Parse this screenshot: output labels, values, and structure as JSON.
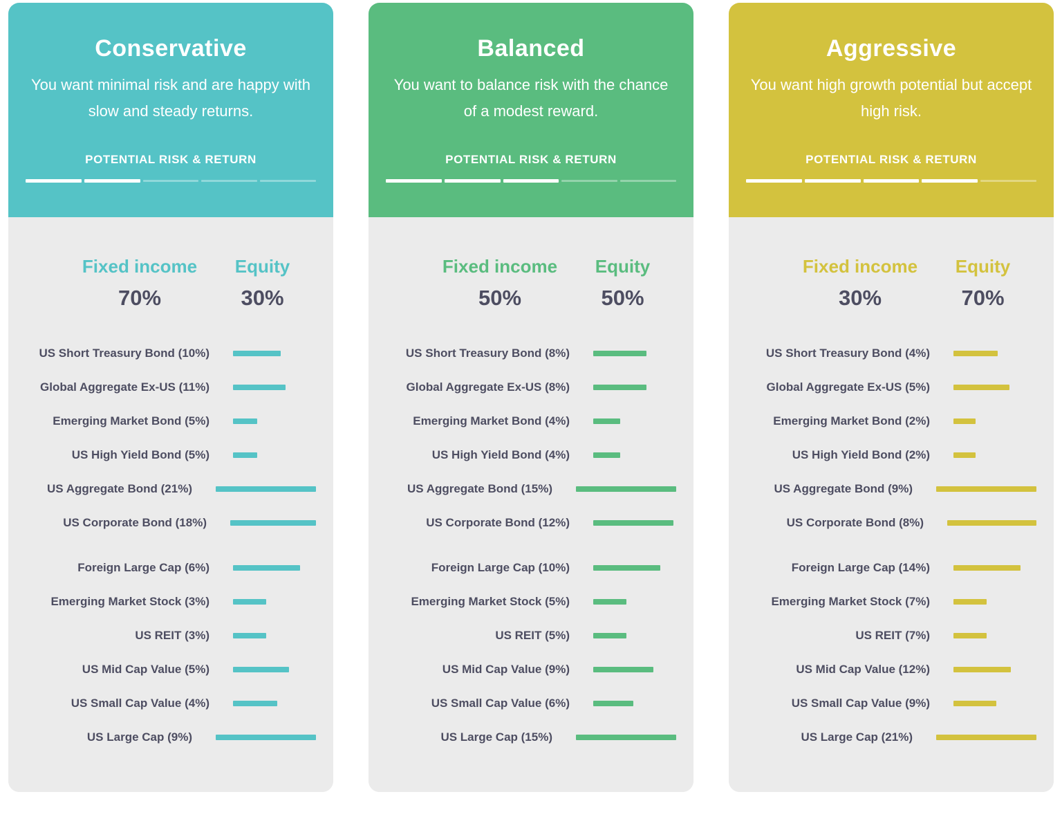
{
  "cards": [
    {
      "id": "conservative",
      "title": "Conservative",
      "description": "You want minimal risk and are happy with slow and steady returns.",
      "risk_label": "POTENTIAL RISK & RETURN",
      "risk_filled": 2,
      "risk_total": 5,
      "accent": "#55c3c6",
      "fixed_income_label": "Fixed income",
      "fixed_income_percent": "70%",
      "equity_label": "Equity",
      "equity_percent": "30%",
      "fixed_income_rows": [
        {
          "label": "US Short Treasury Bond (10%)",
          "value": 10
        },
        {
          "label": "Global Aggregate Ex-US (11%)",
          "value": 11
        },
        {
          "label": "Emerging Market Bond (5%)",
          "value": 5
        },
        {
          "label": "US High Yield Bond (5%)",
          "value": 5
        },
        {
          "label": "US Aggregate Bond (21%)",
          "value": 21
        },
        {
          "label": "US Corporate Bond (18%)",
          "value": 18
        }
      ],
      "equity_rows": [
        {
          "label": "Foreign Large Cap (6%)",
          "value": 6
        },
        {
          "label": "Emerging Market Stock (3%)",
          "value": 3
        },
        {
          "label": "US REIT (3%)",
          "value": 3
        },
        {
          "label": "US Mid Cap Value (5%)",
          "value": 5
        },
        {
          "label": "US Small Cap Value (4%)",
          "value": 4
        },
        {
          "label": "US Large Cap (9%)",
          "value": 9
        }
      ]
    },
    {
      "id": "balanced",
      "title": "Balanced",
      "description": "You want to balance risk with the chance of a modest reward.",
      "risk_label": "POTENTIAL RISK & RETURN",
      "risk_filled": 3,
      "risk_total": 5,
      "accent": "#5abc7f",
      "fixed_income_label": "Fixed income",
      "fixed_income_percent": "50%",
      "equity_label": "Equity",
      "equity_percent": "50%",
      "fixed_income_rows": [
        {
          "label": "US Short Treasury Bond (8%)",
          "value": 8
        },
        {
          "label": "Global Aggregate Ex-US (8%)",
          "value": 8
        },
        {
          "label": "Emerging Market Bond (4%)",
          "value": 4
        },
        {
          "label": "US High Yield Bond (4%)",
          "value": 4
        },
        {
          "label": "US Aggregate Bond (15%)",
          "value": 15
        },
        {
          "label": "US Corporate Bond (12%)",
          "value": 12
        }
      ],
      "equity_rows": [
        {
          "label": "Foreign Large Cap (10%)",
          "value": 10
        },
        {
          "label": "Emerging Market Stock (5%)",
          "value": 5
        },
        {
          "label": "US REIT (5%)",
          "value": 5
        },
        {
          "label": "US Mid Cap Value (9%)",
          "value": 9
        },
        {
          "label": "US Small Cap Value (6%)",
          "value": 6
        },
        {
          "label": "US Large Cap (15%)",
          "value": 15
        }
      ]
    },
    {
      "id": "aggressive",
      "title": "Aggressive",
      "description": "You want high growth potential but accept high risk.",
      "risk_label": "POTENTIAL RISK & RETURN",
      "risk_filled": 4,
      "risk_total": 5,
      "accent": "#d3c23e",
      "fixed_income_label": "Fixed income",
      "fixed_income_percent": "30%",
      "equity_label": "Equity",
      "equity_percent": "70%",
      "fixed_income_rows": [
        {
          "label": "US Short Treasury Bond (4%)",
          "value": 4
        },
        {
          "label": "Global Aggregate Ex-US (5%)",
          "value": 5
        },
        {
          "label": "Emerging Market Bond (2%)",
          "value": 2
        },
        {
          "label": "US High Yield Bond (2%)",
          "value": 2
        },
        {
          "label": "US Aggregate Bond (9%)",
          "value": 9
        },
        {
          "label": "US Corporate Bond (8%)",
          "value": 8
        }
      ],
      "equity_rows": [
        {
          "label": "Foreign Large Cap (14%)",
          "value": 14
        },
        {
          "label": "Emerging Market Stock (7%)",
          "value": 7
        },
        {
          "label": "US REIT (7%)",
          "value": 7
        },
        {
          "label": "US Mid Cap Value (12%)",
          "value": 12
        },
        {
          "label": "US Small Cap Value (9%)",
          "value": 9
        },
        {
          "label": "US Large Cap (21%)",
          "value": 21
        }
      ]
    }
  ],
  "chart_data": [
    {
      "type": "bar",
      "title": "Conservative",
      "subtitle": "You want minimal risk and are happy with slow and steady returns.",
      "orientation": "horizontal",
      "risk_meter": {
        "label": "POTENTIAL RISK & RETURN",
        "filled": 2,
        "max": 5
      },
      "series": [
        {
          "name": "Fixed income",
          "total_percent": 70,
          "categories": [
            "US Short Treasury Bond",
            "Global Aggregate Ex-US",
            "Emerging Market Bond",
            "US High Yield Bond",
            "US Aggregate Bond",
            "US Corporate Bond"
          ],
          "values": [
            10,
            11,
            5,
            5,
            21,
            18
          ]
        },
        {
          "name": "Equity",
          "total_percent": 30,
          "categories": [
            "Foreign Large Cap",
            "Emerging Market Stock",
            "US REIT",
            "US Mid Cap Value",
            "US Small Cap Value",
            "US Large Cap"
          ],
          "values": [
            6,
            3,
            3,
            5,
            4,
            9
          ]
        }
      ],
      "accent_color": "#55c3c6",
      "unit": "%",
      "grid": false,
      "legend_position": "none"
    },
    {
      "type": "bar",
      "title": "Balanced",
      "subtitle": "You want to balance risk with the chance of a modest reward.",
      "orientation": "horizontal",
      "risk_meter": {
        "label": "POTENTIAL RISK & RETURN",
        "filled": 3,
        "max": 5
      },
      "series": [
        {
          "name": "Fixed income",
          "total_percent": 50,
          "categories": [
            "US Short Treasury Bond",
            "Global Aggregate Ex-US",
            "Emerging Market Bond",
            "US High Yield Bond",
            "US Aggregate Bond",
            "US Corporate Bond"
          ],
          "values": [
            8,
            8,
            4,
            4,
            15,
            12
          ]
        },
        {
          "name": "Equity",
          "total_percent": 50,
          "categories": [
            "Foreign Large Cap",
            "Emerging Market Stock",
            "US REIT",
            "US Mid Cap Value",
            "US Small Cap Value",
            "US Large Cap"
          ],
          "values": [
            10,
            5,
            5,
            9,
            6,
            15
          ]
        }
      ],
      "accent_color": "#5abc7f",
      "unit": "%",
      "grid": false,
      "legend_position": "none"
    },
    {
      "type": "bar",
      "title": "Aggressive",
      "subtitle": "You want high growth potential but accept high risk.",
      "orientation": "horizontal",
      "risk_meter": {
        "label": "POTENTIAL RISK & RETURN",
        "filled": 4,
        "max": 5
      },
      "series": [
        {
          "name": "Fixed income",
          "total_percent": 30,
          "categories": [
            "US Short Treasury Bond",
            "Global Aggregate Ex-US",
            "Emerging Market Bond",
            "US High Yield Bond",
            "US Aggregate Bond",
            "US Corporate Bond"
          ],
          "values": [
            4,
            5,
            2,
            2,
            9,
            8
          ]
        },
        {
          "name": "Equity",
          "total_percent": 70,
          "categories": [
            "Foreign Large Cap",
            "Emerging Market Stock",
            "US REIT",
            "US Mid Cap Value",
            "US Small Cap Value",
            "US Large Cap"
          ],
          "values": [
            14,
            7,
            7,
            12,
            9,
            21
          ]
        }
      ],
      "accent_color": "#d3c23e",
      "unit": "%",
      "grid": false,
      "legend_position": "none"
    }
  ]
}
